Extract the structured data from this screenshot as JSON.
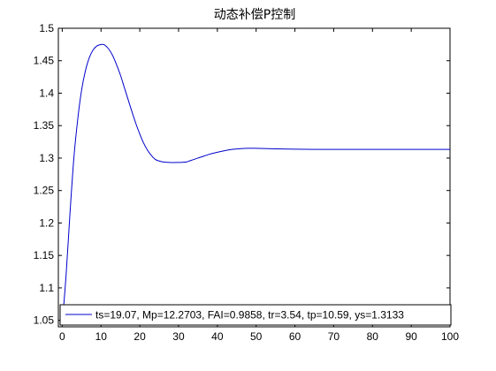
{
  "chart_data": {
    "type": "line",
    "title": "动态补偿P控制",
    "xlabel": "",
    "ylabel": "",
    "xlim": [
      -1,
      100
    ],
    "ylim": [
      1.04,
      1.5
    ],
    "grid": false,
    "legend_placement": "bottom",
    "xticks": [
      "0",
      "10",
      "20",
      "30",
      "40",
      "50",
      "60",
      "70",
      "80",
      "90",
      "100"
    ],
    "yticks": [
      "1.05",
      "1.1",
      "1.15",
      "1.2",
      "1.25",
      "1.3",
      "1.35",
      "1.4",
      "1.45",
      "1.5"
    ],
    "series": [
      {
        "name": "ts=19.07,  Mp=12.2703, FAI=0.9858, tr=3.54, tp=10.59, ys=1.3133",
        "color": "#0000cc",
        "x": [
          0,
          1,
          2,
          3,
          4,
          5,
          6,
          7,
          8,
          9,
          10,
          10.59,
          11,
          12,
          13,
          14,
          15,
          16,
          17,
          18,
          19,
          20,
          21,
          22,
          23,
          24,
          25,
          26,
          27,
          28,
          29,
          30,
          31,
          32,
          33,
          34,
          35,
          36,
          38,
          40,
          42,
          44,
          46,
          48,
          50,
          52,
          55,
          60,
          65,
          70,
          80,
          90,
          100
        ],
        "y": [
          1.045,
          1.12,
          1.215,
          1.3,
          1.36,
          1.405,
          1.435,
          1.455,
          1.467,
          1.473,
          1.475,
          1.475,
          1.474,
          1.468,
          1.458,
          1.444,
          1.428,
          1.409,
          1.39,
          1.371,
          1.353,
          1.337,
          1.323,
          1.312,
          1.304,
          1.298,
          1.2955,
          1.294,
          1.2935,
          1.2932,
          1.2932,
          1.2933,
          1.2935,
          1.294,
          1.296,
          1.298,
          1.3,
          1.302,
          1.306,
          1.309,
          1.3115,
          1.3135,
          1.3145,
          1.315,
          1.315,
          1.3148,
          1.3143,
          1.3137,
          1.3134,
          1.3133,
          1.3133,
          1.3133,
          1.3133
        ]
      }
    ]
  }
}
